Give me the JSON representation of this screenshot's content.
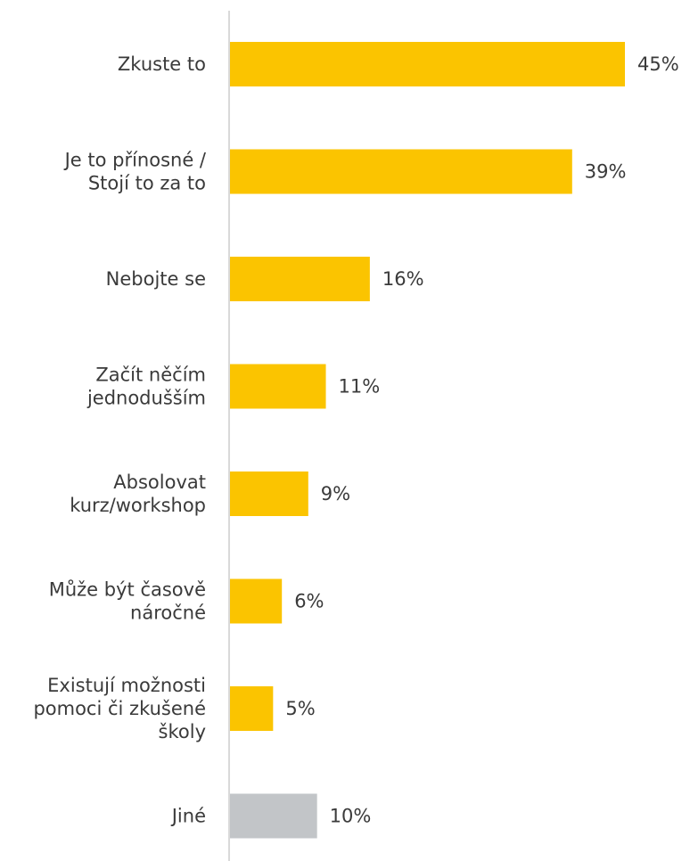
{
  "chart_data": {
    "type": "bar",
    "orientation": "horizontal",
    "categories": [
      [
        "Zkuste to"
      ],
      [
        "Je to přínosné /",
        "Stojí to za to"
      ],
      [
        "Nebojte se"
      ],
      [
        "Začít něčím",
        "jednodušším"
      ],
      [
        "Absolovat",
        "kurz/workshop"
      ],
      [
        "Může být časově",
        "náročné"
      ],
      [
        "Existují možnosti",
        "pomoci či zkušené",
        "školy"
      ],
      [
        "Jiné"
      ]
    ],
    "values": [
      45,
      39,
      16,
      11,
      9,
      6,
      5,
      10
    ],
    "value_labels": [
      "45%",
      "39%",
      "16%",
      "11%",
      "9%",
      "6%",
      "5%",
      "10%"
    ],
    "bar_colors": [
      "#FBC400",
      "#FBC400",
      "#FBC400",
      "#FBC400",
      "#FBC400",
      "#FBC400",
      "#FBC400",
      "#C2C5C8"
    ],
    "axis_color": "#D9D9D9",
    "xlim": [
      0,
      45
    ],
    "grid": false,
    "legend": "none",
    "title": "",
    "xlabel": "",
    "ylabel": ""
  }
}
